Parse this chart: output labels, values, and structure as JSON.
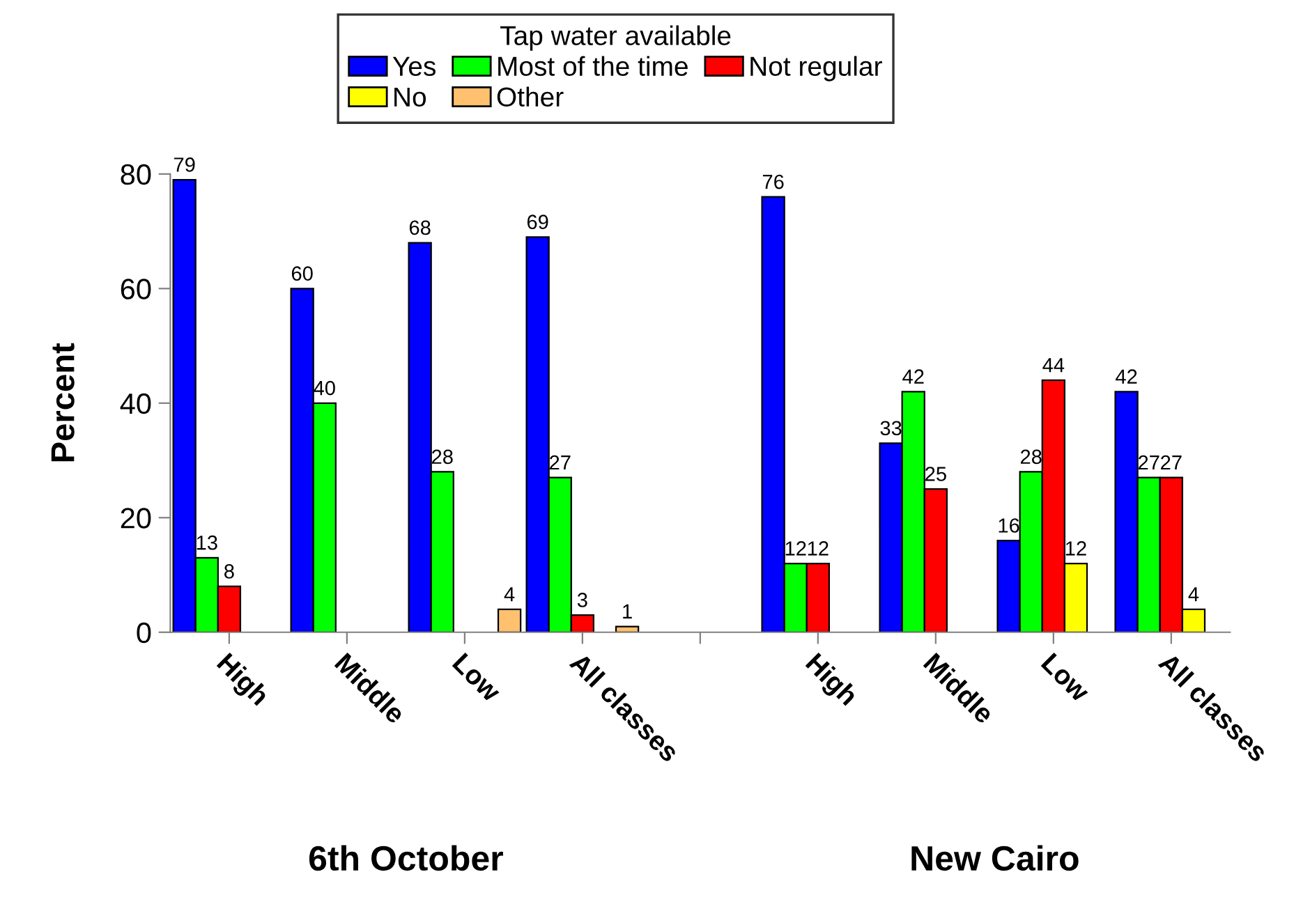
{
  "chart_data": {
    "type": "bar",
    "categories": [
      "High",
      "Middle",
      "Low",
      "All classes",
      null,
      "High",
      "Middle",
      "Low",
      "All classes"
    ],
    "series": [
      {
        "name": "Yes",
        "color": "#0000ff",
        "values": [
          79,
          60,
          68,
          69,
          null,
          76,
          33,
          16,
          42
        ]
      },
      {
        "name": "Most of the time",
        "color": "#00ff00",
        "values": [
          13,
          40,
          28,
          27,
          null,
          12,
          42,
          28,
          27
        ]
      },
      {
        "name": "Not regular",
        "color": "#ff0000",
        "values": [
          8,
          null,
          null,
          3,
          null,
          12,
          25,
          44,
          27
        ]
      },
      {
        "name": "No",
        "color": "#ffff00",
        "values": [
          null,
          null,
          null,
          null,
          null,
          null,
          null,
          12,
          4
        ]
      },
      {
        "name": "Other",
        "color": "#ffc06f",
        "values": [
          null,
          null,
          4,
          1,
          null,
          null,
          null,
          null,
          null
        ]
      }
    ],
    "ylabel": "Percent",
    "legend_title": "Tap water available",
    "legend": "top",
    "annotations": [
      "6th October",
      "New Cairo"
    ],
    "ylim": [
      0,
      80
    ],
    "yticks": [
      0,
      20,
      40,
      60,
      80
    ],
    "data_labels": true,
    "grid": false
  }
}
